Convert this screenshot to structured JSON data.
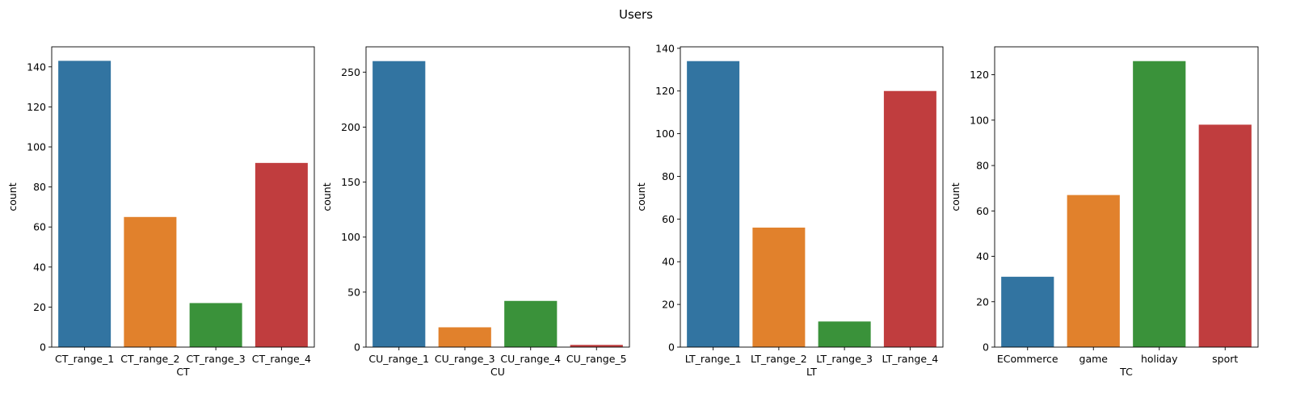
{
  "figure": {
    "title": "Users"
  },
  "colors": [
    "#3274a1",
    "#e1812c",
    "#3a923a",
    "#c03d3e"
  ],
  "chart_data": [
    {
      "type": "bar",
      "categories": [
        "CT_range_1",
        "CT_range_2",
        "CT_range_3",
        "CT_range_4"
      ],
      "values": [
        143,
        65,
        22,
        92
      ],
      "xlabel": "CT",
      "ylabel": "count",
      "ylim": [
        0,
        150
      ],
      "yticks": [
        0,
        20,
        40,
        60,
        80,
        100,
        120,
        140
      ]
    },
    {
      "type": "bar",
      "categories": [
        "CU_range_1",
        "CU_range_3",
        "CU_range_4",
        "CU_range_5"
      ],
      "values": [
        260,
        18,
        42,
        2
      ],
      "xlabel": "CU",
      "ylabel": "count",
      "ylim": [
        0,
        273
      ],
      "yticks": [
        0,
        50,
        100,
        150,
        200,
        250
      ]
    },
    {
      "type": "bar",
      "categories": [
        "LT_range_1",
        "LT_range_2",
        "LT_range_3",
        "LT_range_4"
      ],
      "values": [
        134,
        56,
        12,
        120
      ],
      "xlabel": "LT",
      "ylabel": "count",
      "ylim": [
        0,
        140.7
      ],
      "yticks": [
        0,
        20,
        40,
        60,
        80,
        100,
        120,
        140
      ]
    },
    {
      "type": "bar",
      "categories": [
        "ECommerce",
        "game",
        "holiday",
        "sport"
      ],
      "values": [
        31,
        67,
        126,
        98
      ],
      "xlabel": "TC",
      "ylabel": "count",
      "ylim": [
        0,
        132.3
      ],
      "yticks": [
        0,
        20,
        40,
        60,
        80,
        100,
        120
      ]
    }
  ]
}
